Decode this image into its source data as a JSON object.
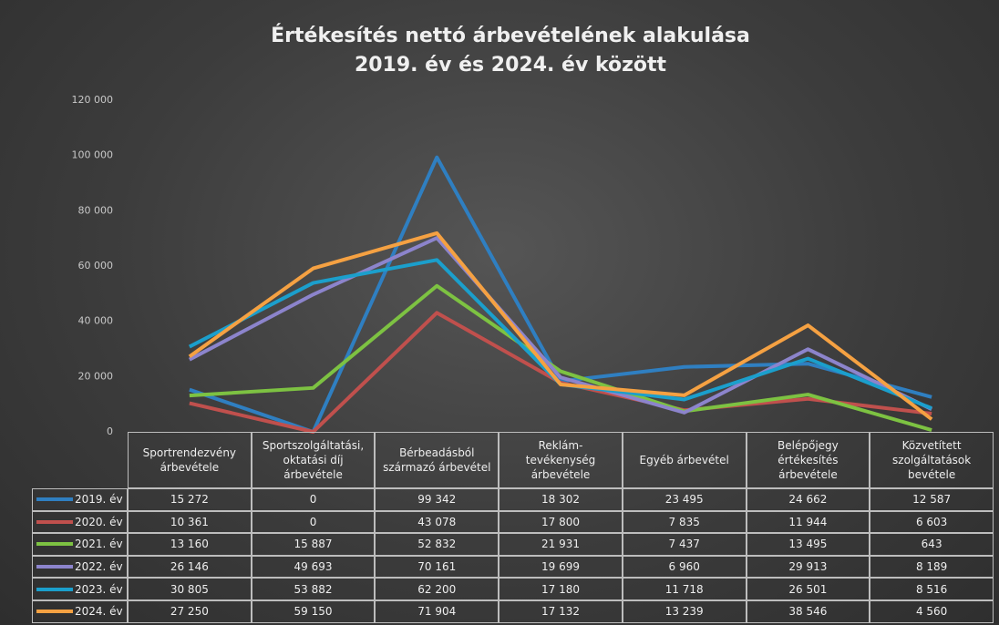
{
  "chart_data": {
    "type": "line",
    "title": [
      "Értékesítés nettó árbevételének alakulása",
      "2019. év és 2024. év között"
    ],
    "categories": [
      "Sportrendezvény árbevétele",
      "Sportszolgáltatási, oktatási díj árbevétele",
      "Bérbeadásból származó árbevétel",
      "Reklám-tevékenység árbevétele",
      "Egyéb árbevétel",
      "Belépőjegy értékesítés árbevétele",
      "Közvetített szolgáltatások bevétele"
    ],
    "ylim": [
      0,
      120000
    ],
    "yticks": [
      0,
      {
        "value": 20000,
        "label": "20 000"
      },
      {
        "value": 40000,
        "label": "40 000"
      },
      {
        "value": 60000,
        "label": "60 000"
      },
      {
        "value": 80000,
        "label": "80 000"
      },
      {
        "value": 100000,
        "label": "100 000"
      },
      {
        "value": 120000,
        "label": "120 000"
      }
    ],
    "grid": false,
    "series": [
      {
        "name": "2019. év",
        "color": "#2f7fc1",
        "values": [
          15272,
          0,
          99342,
          18302,
          23495,
          24662,
          12587
        ],
        "value_labels": [
          "15 272",
          "0",
          "99 342",
          "18 302",
          "23 495",
          "24 662",
          "12 587"
        ]
      },
      {
        "name": "2020. év",
        "color": "#c0504d",
        "values": [
          10361,
          0,
          43078,
          17800,
          7835,
          11944,
          6603
        ],
        "value_labels": [
          "10 361",
          "0",
          "43 078",
          "17 800",
          "7 835",
          "11 944",
          "6 603"
        ]
      },
      {
        "name": "2021. év",
        "color": "#7dc242",
        "values": [
          13160,
          15887,
          52832,
          21931,
          7437,
          13495,
          643
        ],
        "value_labels": [
          "13 160",
          "15 887",
          "52 832",
          "21 931",
          "7 437",
          "13 495",
          "643"
        ]
      },
      {
        "name": "2022. év",
        "color": "#8c84cc",
        "values": [
          26146,
          49693,
          70161,
          19699,
          6960,
          29913,
          8189
        ],
        "value_labels": [
          "26 146",
          "49 693",
          "70 161",
          "19 699",
          "6 960",
          "29 913",
          "8 189"
        ]
      },
      {
        "name": "2023. év",
        "color": "#1b9fcc",
        "values": [
          30805,
          53882,
          62200,
          17180,
          11718,
          26501,
          8516
        ],
        "value_labels": [
          "30 805",
          "53 882",
          "62 200",
          "17 180",
          "11 718",
          "26 501",
          "8 516"
        ]
      },
      {
        "name": "2024. év",
        "color": "#f5a142",
        "values": [
          27250,
          59150,
          71904,
          17132,
          13239,
          38546,
          4560
        ],
        "value_labels": [
          "27 250",
          "59 150",
          "71 904",
          "17 132",
          "13 239",
          "38 546",
          "4 560"
        ]
      }
    ]
  }
}
